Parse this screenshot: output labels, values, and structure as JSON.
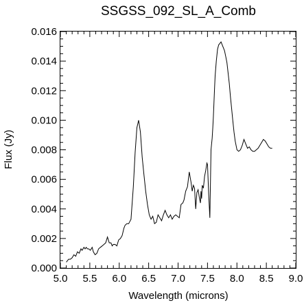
{
  "chart_data": {
    "type": "line",
    "title": "SSGSS_092_SL_A_Comb",
    "xlabel": "Wavelength (microns)",
    "ylabel": "Flux (Jy)",
    "xlim": [
      5.0,
      9.0
    ],
    "ylim": [
      0.0,
      0.016
    ],
    "x_ticks": [
      5.0,
      5.5,
      6.0,
      6.5,
      7.0,
      7.5,
      8.0,
      8.5,
      9.0
    ],
    "x_tick_labels": [
      "5.0",
      "5.5",
      "6.0",
      "6.5",
      "7.0",
      "7.5",
      "8.0",
      "8.5",
      "9.0"
    ],
    "y_ticks": [
      0.0,
      0.002,
      0.004,
      0.006,
      0.008,
      0.01,
      0.012,
      0.014,
      0.016
    ],
    "y_tick_labels": [
      "0.000",
      "0.002",
      "0.004",
      "0.006",
      "0.008",
      "0.010",
      "0.012",
      "0.014",
      "0.016"
    ],
    "grid": false,
    "legend": "none",
    "series": [
      {
        "x": [
          5.1,
          5.14,
          5.17,
          5.2,
          5.23,
          5.26,
          5.29,
          5.32,
          5.35,
          5.37,
          5.4,
          5.42,
          5.44,
          5.46,
          5.48,
          5.51,
          5.54,
          5.56,
          5.59,
          5.62,
          5.65,
          5.68,
          5.71,
          5.74,
          5.77,
          5.8,
          5.83,
          5.86,
          5.88,
          5.9,
          5.93,
          5.96,
          5.99,
          6.02,
          6.05,
          6.08,
          6.1,
          6.13,
          6.16,
          6.2,
          6.24,
          6.27,
          6.3,
          6.33,
          6.36,
          6.39,
          6.42,
          6.45,
          6.48,
          6.51,
          6.54,
          6.57,
          6.6,
          6.63,
          6.66,
          6.69,
          6.72,
          6.75,
          6.78,
          6.81,
          6.84,
          6.87,
          6.9,
          6.93,
          6.96,
          6.99,
          7.02,
          7.05,
          7.08,
          7.1,
          7.13,
          7.16,
          7.19,
          7.22,
          7.24,
          7.26,
          7.28,
          7.3,
          7.32,
          7.34,
          7.36,
          7.38,
          7.39,
          7.4,
          7.41,
          7.43,
          7.45,
          7.47,
          7.49,
          7.5,
          7.52,
          7.54,
          7.56,
          7.58,
          7.59,
          7.6,
          7.61,
          7.62,
          7.63,
          7.65,
          7.67,
          7.69,
          7.71,
          7.73,
          7.75,
          7.77,
          7.79,
          7.81,
          7.83,
          7.85,
          7.87,
          7.89,
          7.91,
          7.93,
          7.95,
          7.97,
          8.0,
          8.03,
          8.06,
          8.09,
          8.12,
          8.15,
          8.18,
          8.21,
          8.24,
          8.27,
          8.3,
          8.33,
          8.36,
          8.39,
          8.42,
          8.45,
          8.48,
          8.51,
          8.54,
          8.57,
          8.6
        ],
        "y": [
          0.0004,
          0.0006,
          0.0006,
          0.0007,
          0.0009,
          0.0008,
          0.0011,
          0.001,
          0.0013,
          0.0012,
          0.0014,
          0.0013,
          0.0014,
          0.0013,
          0.0013,
          0.0012,
          0.0014,
          0.0011,
          0.0009,
          0.001,
          0.0013,
          0.0014,
          0.0015,
          0.0016,
          0.0017,
          0.0021,
          0.0017,
          0.0017,
          0.0015,
          0.0016,
          0.0016,
          0.0015,
          0.0019,
          0.002,
          0.0022,
          0.0027,
          0.0029,
          0.003,
          0.003,
          0.0033,
          0.0055,
          0.0078,
          0.0095,
          0.01,
          0.0092,
          0.0075,
          0.0063,
          0.0052,
          0.0043,
          0.0036,
          0.0033,
          0.0035,
          0.003,
          0.0031,
          0.0036,
          0.0034,
          0.0032,
          0.0036,
          0.0039,
          0.0036,
          0.0034,
          0.0036,
          0.0033,
          0.0035,
          0.0036,
          0.0035,
          0.0034,
          0.0043,
          0.0044,
          0.0046,
          0.0052,
          0.0055,
          0.0065,
          0.0058,
          0.0052,
          0.0056,
          0.0054,
          0.004,
          0.0051,
          0.0053,
          0.0048,
          0.0044,
          0.0052,
          0.0047,
          0.0056,
          0.0054,
          0.0062,
          0.0066,
          0.0071,
          0.007,
          0.005,
          0.0034,
          0.008,
          0.0088,
          0.0095,
          0.0102,
          0.0112,
          0.0122,
          0.013,
          0.014,
          0.0148,
          0.0151,
          0.0152,
          0.0153,
          0.0151,
          0.0149,
          0.0147,
          0.0143,
          0.0139,
          0.0132,
          0.0125,
          0.0116,
          0.0108,
          0.01,
          0.0092,
          0.0086,
          0.008,
          0.0079,
          0.008,
          0.0083,
          0.0087,
          0.0084,
          0.0081,
          0.0082,
          0.008,
          0.0079,
          0.0079,
          0.008,
          0.0081,
          0.0083,
          0.0085,
          0.0087,
          0.0086,
          0.0084,
          0.0082,
          0.0081,
          0.0081
        ]
      }
    ]
  }
}
